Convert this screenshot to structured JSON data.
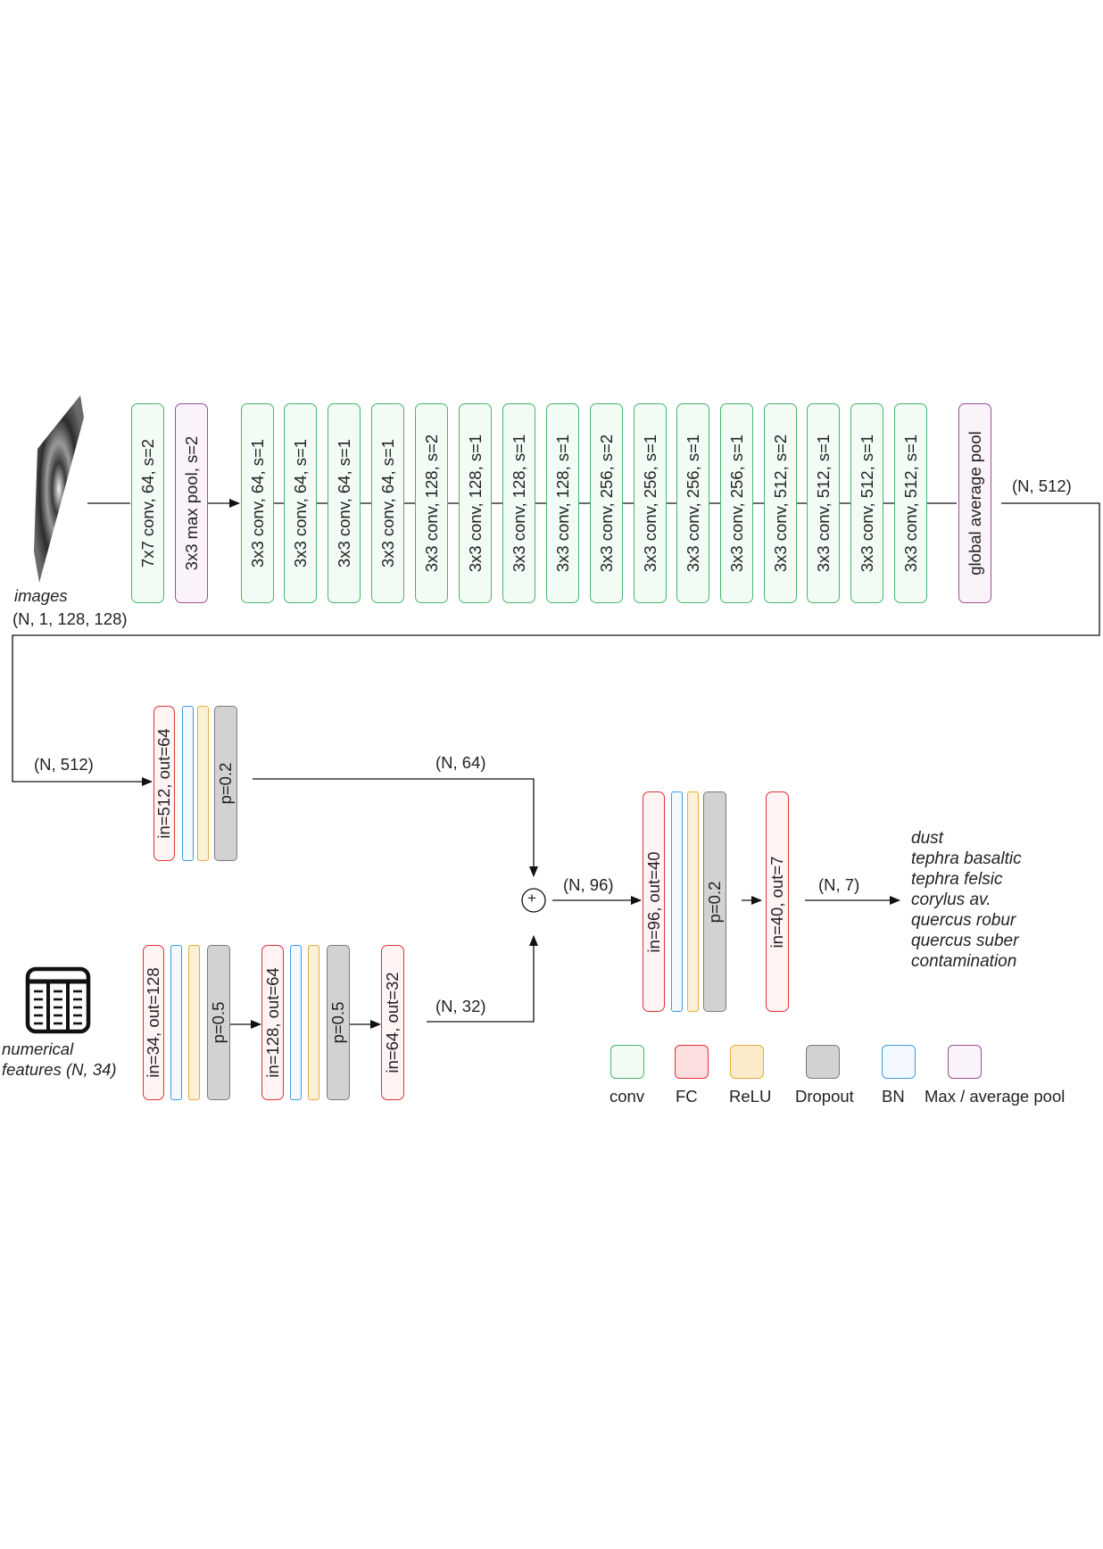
{
  "image_input": {
    "label": "images",
    "shape": "(N, 1, 128, 128)"
  },
  "cnn_layers": [
    {
      "label": "7x7 conv, 64, s=2",
      "kind": "conv"
    },
    {
      "label": "3x3 max pool, s=2",
      "kind": "pool"
    },
    {
      "label": "3x3 conv, 64, s=1",
      "kind": "conv"
    },
    {
      "label": "3x3 conv, 64, s=1",
      "kind": "conv"
    },
    {
      "label": "3x3 conv, 64, s=1",
      "kind": "conv"
    },
    {
      "label": "3x3 conv, 64, s=1",
      "kind": "conv"
    },
    {
      "label": "3x3 conv, 128, s=2",
      "kind": "conv"
    },
    {
      "label": "3x3 conv, 128, s=1",
      "kind": "conv"
    },
    {
      "label": "3x3 conv, 128, s=1",
      "kind": "conv"
    },
    {
      "label": "3x3 conv, 128, s=1",
      "kind": "conv"
    },
    {
      "label": "3x3 conv, 256, s=2",
      "kind": "conv"
    },
    {
      "label": "3x3 conv, 256, s=1",
      "kind": "conv"
    },
    {
      "label": "3x3 conv, 256, s=1",
      "kind": "conv"
    },
    {
      "label": "3x3 conv, 256, s=1",
      "kind": "conv"
    },
    {
      "label": "3x3 conv, 512, s=2",
      "kind": "conv"
    },
    {
      "label": "3x3 conv, 512, s=1",
      "kind": "conv"
    },
    {
      "label": "3x3 conv, 512, s=1",
      "kind": "conv"
    },
    {
      "label": "3x3 conv, 512, s=1",
      "kind": "conv"
    },
    {
      "label": "global average pool",
      "kind": "pool"
    }
  ],
  "edges": {
    "cnn_out": "(N, 512)",
    "branch1_in": "(N, 512)",
    "branch1_out": "(N, 64)",
    "branch2_out": "(N, 32)",
    "concat_out": "(N, 96)",
    "final_out": "(N, 7)"
  },
  "image_head": {
    "fc": "in=512, out=64",
    "dropout": "p=0.2"
  },
  "numerical_input": {
    "label_line1": "numerical",
    "label_line2": "features (N, 34)"
  },
  "numerical_head": {
    "fc1": "in=34, out=128",
    "dropout1": "p=0.5",
    "fc2": "in=128, out=64",
    "dropout2": "p=0.5",
    "fc3": "in=64, out=32"
  },
  "fusion": {
    "symbol": "+",
    "fc1": "in=96, out=40",
    "dropout": "p=0.2",
    "fc2": "in=40, out=7"
  },
  "classes": [
    "dust",
    "tephra basaltic",
    "tephra felsic",
    "corylus av.",
    "quercus robur",
    "quercus suber",
    "contamination"
  ],
  "legend": [
    {
      "label": "conv",
      "kind": "conv"
    },
    {
      "label": "FC",
      "kind": "fc"
    },
    {
      "label": "ReLU",
      "kind": "relu"
    },
    {
      "label": "Dropout",
      "kind": "drop"
    },
    {
      "label": "BN",
      "kind": "bn"
    },
    {
      "label": "Max / average pool",
      "kind": "pool"
    }
  ],
  "colors": {
    "conv": "#45b86a",
    "fc": "#e0313a",
    "relu": "#e3ad3c",
    "dropout": "#7a7a7a",
    "bn": "#3d9ae0",
    "pool": "#9b4f96"
  }
}
